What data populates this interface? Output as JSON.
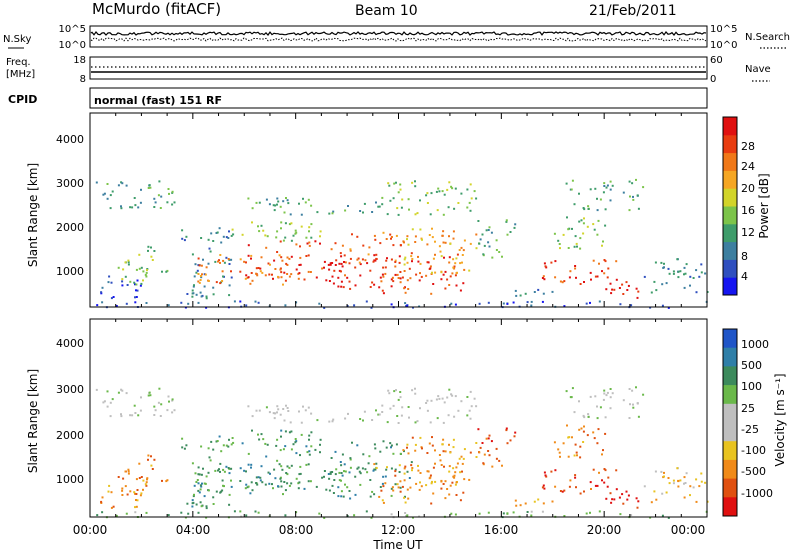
{
  "header": {
    "title": "McMurdo (fitACF)",
    "beam": "Beam 10",
    "date": "21/Feb/2011"
  },
  "strip": {
    "nsky_label": "N.Sky",
    "nsearch_label": "N.Search",
    "nsky_ticks": [
      "10^5",
      "10^0"
    ],
    "freq_label_1": "Freq.",
    "freq_label_2": "[MHz]",
    "freq_ticks": [
      "18",
      "8"
    ],
    "nave_label": "Nave",
    "nave_ticks": [
      "60",
      "0"
    ],
    "cpid_label": "CPID",
    "cpid_value": "normal (fast) 151 RF"
  },
  "colors": {
    "power_scale": [
      "#1515f0",
      "#2f4fbf",
      "#3d7fa0",
      "#3e9c6a",
      "#7cc44a",
      "#d2d42a",
      "#f5a623",
      "#f07818",
      "#e83c10",
      "#e01010"
    ],
    "velocity_scale": [
      "#1f55c8",
      "#2f7fa8",
      "#3c8a5c",
      "#6ab84a",
      "#bfbfbf",
      "#bfbfbf",
      "#e8c320",
      "#f08a18",
      "#e05010",
      "#e01010"
    ]
  },
  "chart_data": [
    {
      "type": "heatmap",
      "title": "",
      "ylabel": "Slant Range [km]",
      "yticks": [
        "1000",
        "2000",
        "3000",
        "4000"
      ],
      "ylim": [
        180,
        4600
      ],
      "xticks": [
        "00:00",
        "04:00",
        "08:00",
        "12:00",
        "16:00",
        "20:00",
        "00:00"
      ],
      "colorbar_label": "Power [dB]",
      "colorbar_ticks": [
        "4",
        "8",
        "12",
        "16",
        "20",
        "24",
        "28"
      ]
    },
    {
      "type": "heatmap",
      "title": "",
      "ylabel": "Slant Range [km]",
      "yticks": [
        "1000",
        "2000",
        "3000",
        "4000"
      ],
      "ylim": [
        180,
        4600
      ],
      "xlabel": "Time UT",
      "xticks": [
        "00:00",
        "04:00",
        "08:00",
        "12:00",
        "16:00",
        "20:00",
        "00:00"
      ],
      "colorbar_label": "Velocity [m s⁻¹]",
      "colorbar_ticks": [
        "1000",
        "500",
        "100",
        "25",
        "-25",
        "-100",
        "-500",
        "-1000"
      ]
    }
  ]
}
